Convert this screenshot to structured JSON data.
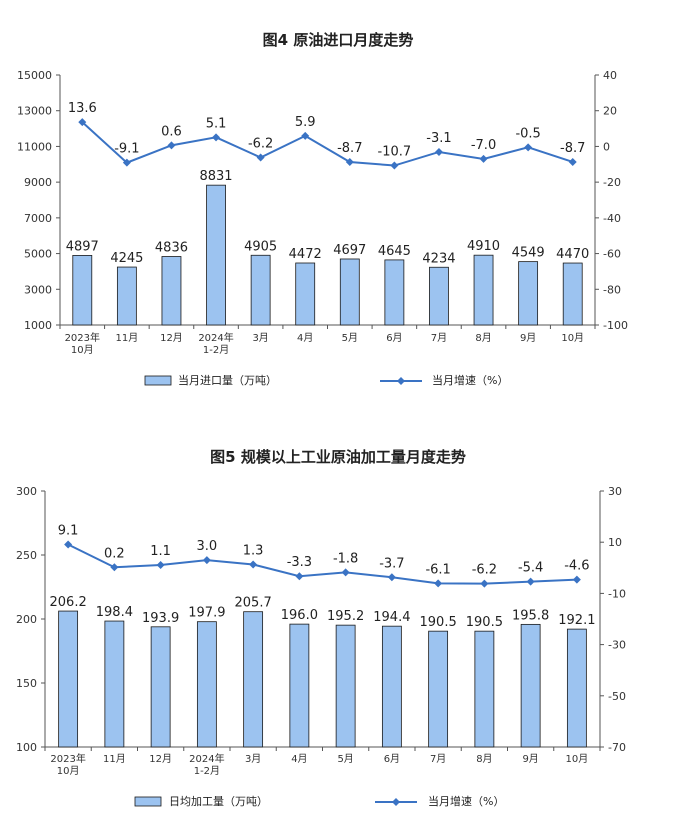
{
  "chart_data": [
    {
      "type": "bar+line",
      "title": "图4  原油进口月度走势",
      "categories": [
        [
          "2023年",
          "10月"
        ],
        [
          "11月"
        ],
        [
          "12月"
        ],
        [
          "2024年",
          "1-2月"
        ],
        [
          "3月"
        ],
        [
          "4月"
        ],
        [
          "5月"
        ],
        [
          "6月"
        ],
        [
          "7月"
        ],
        [
          "8月"
        ],
        [
          "9月"
        ],
        [
          "10月"
        ]
      ],
      "series": [
        {
          "name": "当月进口量（万吨）",
          "kind": "bar",
          "axis": "left",
          "values": [
            4897,
            4245,
            4836,
            8831,
            4905,
            4472,
            4697,
            4645,
            4234,
            4910,
            4549,
            4470
          ],
          "labels": [
            "4897",
            "4245",
            "4836",
            "8831",
            "4905",
            "4472",
            "4697",
            "4645",
            "4234",
            "4910",
            "4549",
            "4470"
          ]
        },
        {
          "name": "当月增速（%）",
          "kind": "line",
          "axis": "right",
          "values": [
            13.6,
            -9.1,
            0.6,
            5.1,
            -6.2,
            5.9,
            -8.7,
            -10.7,
            -3.1,
            -7.0,
            -0.5,
            -8.7
          ],
          "labels": [
            "13.6",
            "-9.1",
            "0.6",
            "5.1",
            "-6.2",
            "5.9",
            "-8.7",
            "-10.7",
            "-3.1",
            "-7.0",
            "-0.5",
            "-8.7"
          ]
        }
      ],
      "ylim_left": [
        1000,
        15000
      ],
      "yticks_left": [
        1000,
        3000,
        5000,
        7000,
        9000,
        11000,
        13000,
        15000
      ],
      "ylim_right": [
        -100,
        40
      ],
      "yticks_right": [
        40,
        20,
        0,
        -20,
        -40,
        -60,
        -80,
        -100
      ],
      "legend": "bottom",
      "colors": {
        "bar": "#9cc3f0",
        "bar_stroke": "#1a1a1a",
        "line": "#3a73c4"
      }
    },
    {
      "type": "bar+line",
      "title": "图5  规模以上工业原油加工量月度走势",
      "categories": [
        [
          "2023年",
          "10月"
        ],
        [
          "11月"
        ],
        [
          "12月"
        ],
        [
          "2024年",
          "1-2月"
        ],
        [
          "3月"
        ],
        [
          "4月"
        ],
        [
          "5月"
        ],
        [
          "6月"
        ],
        [
          "7月"
        ],
        [
          "8月"
        ],
        [
          "9月"
        ],
        [
          "10月"
        ]
      ],
      "series": [
        {
          "name": "日均加工量（万吨）",
          "kind": "bar",
          "axis": "left",
          "values": [
            206.2,
            198.4,
            193.9,
            197.9,
            205.7,
            196.0,
            195.2,
            194.4,
            190.5,
            190.5,
            195.8,
            192.1
          ],
          "labels": [
            "206.2",
            "198.4",
            "193.9",
            "197.9",
            "205.7",
            "196.0",
            "195.2",
            "194.4",
            "190.5",
            "190.5",
            "195.8",
            "192.1"
          ]
        },
        {
          "name": "当月增速（%）",
          "kind": "line",
          "axis": "right",
          "values": [
            9.1,
            0.2,
            1.1,
            3.0,
            1.3,
            -3.3,
            -1.8,
            -3.7,
            -6.1,
            -6.2,
            -5.4,
            -4.6
          ],
          "labels": [
            "9.1",
            "0.2",
            "1.1",
            "3.0",
            "1.3",
            "-3.3",
            "-1.8",
            "-3.7",
            "-6.1",
            "-6.2",
            "-5.4",
            "-4.6"
          ]
        }
      ],
      "ylim_left": [
        100,
        300
      ],
      "yticks_left": [
        100,
        150,
        200,
        250,
        300
      ],
      "ylim_right": [
        -70,
        30
      ],
      "yticks_right": [
        30,
        10,
        -10,
        -30,
        -50,
        -70
      ],
      "legend": "bottom",
      "colors": {
        "bar": "#9cc3f0",
        "bar_stroke": "#1a1a1a",
        "line": "#3a73c4"
      }
    }
  ]
}
